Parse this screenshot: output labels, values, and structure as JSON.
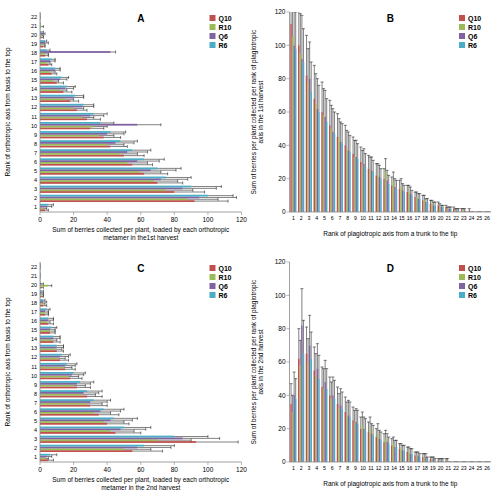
{
  "chart_data": [
    {
      "type": "bar",
      "title": "A",
      "orientation": "horizontal",
      "legend": "top-right",
      "x_label": "Sum of berries collected per plant, loaded by each orthotropic metamer in the1st harvest",
      "y_label": "Rank of orthotropic axis from basis to the top",
      "xlim": [
        0,
        120
      ],
      "xticks": [
        0,
        20,
        40,
        60,
        80,
        100,
        120
      ],
      "categories": [
        "1",
        "2",
        "3",
        "4",
        "5",
        "6",
        "7",
        "8",
        "9",
        "10",
        "11",
        "12",
        "13",
        "14",
        "15",
        "16",
        "17",
        "18",
        "19",
        "20",
        "21",
        "22"
      ],
      "series": [
        {
          "name": "Q10",
          "color": "#c0504d",
          "values": [
            3,
            92,
            80,
            70,
            62,
            55,
            50,
            42,
            38,
            30,
            28,
            22,
            18,
            14,
            10,
            7,
            5,
            3,
            2,
            1,
            0,
            0
          ],
          "errors": [
            2,
            20,
            18,
            15,
            14,
            12,
            12,
            10,
            10,
            8,
            8,
            6,
            5,
            5,
            4,
            3,
            2,
            2,
            1,
            1,
            0,
            0
          ]
        },
        {
          "name": "R10",
          "color": "#9bbb59",
          "values": [
            2,
            88,
            75,
            68,
            60,
            52,
            48,
            40,
            35,
            32,
            25,
            20,
            15,
            12,
            8,
            6,
            4,
            3,
            2,
            1,
            1,
            0
          ],
          "errors": [
            2,
            18,
            16,
            14,
            12,
            12,
            10,
            10,
            9,
            8,
            7,
            6,
            5,
            4,
            3,
            3,
            2,
            2,
            1,
            1,
            1,
            0
          ]
        },
        {
          "name": "Q6",
          "color": "#8064a2",
          "values": [
            4,
            95,
            85,
            72,
            66,
            58,
            52,
            45,
            40,
            58,
            30,
            25,
            20,
            15,
            12,
            9,
            6,
            42,
            3,
            2,
            0,
            0
          ],
          "errors": [
            3,
            22,
            20,
            16,
            15,
            13,
            12,
            11,
            10,
            14,
            8,
            7,
            6,
            5,
            4,
            3,
            3,
            3,
            2,
            1,
            0,
            0
          ]
        },
        {
          "name": "R6",
          "color": "#4bacc6",
          "values": [
            5,
            100,
            90,
            75,
            70,
            62,
            55,
            48,
            42,
            36,
            32,
            26,
            21,
            16,
            13,
            9,
            7,
            4,
            3,
            1,
            0,
            0
          ],
          "errors": [
            3,
            15,
            18,
            15,
            14,
            12,
            11,
            10,
            9,
            8,
            8,
            6,
            5,
            5,
            4,
            3,
            2,
            2,
            1,
            1,
            0,
            0
          ]
        }
      ]
    },
    {
      "type": "bar",
      "title": "B",
      "legend": "top-right",
      "x_label": "Rank of plagiotropic axis from a trunk to the tip",
      "y_label": "Sum of berries per plant collected per rank of plagiotropic axis in the 1st harvest",
      "ylim": [
        0,
        120
      ],
      "yticks": [
        0,
        20,
        40,
        60,
        80,
        100,
        120
      ],
      "categories": [
        "1",
        "2",
        "3",
        "4",
        "5",
        "6",
        "7",
        "8",
        "9",
        "10",
        "11",
        "12",
        "13",
        "14",
        "15",
        "16",
        "17",
        "18",
        "19",
        "20",
        "21",
        "22",
        "23",
        "24",
        "25",
        "26"
      ],
      "series": [
        {
          "name": "Q10",
          "color": "#c0504d",
          "values": [
            113,
            100,
            82,
            68,
            60,
            52,
            45,
            40,
            35,
            30,
            26,
            22,
            20,
            16,
            14,
            12,
            9,
            7,
            5,
            4,
            3,
            2,
            1,
            1,
            0,
            0
          ],
          "errors": [
            30,
            28,
            24,
            20,
            18,
            15,
            14,
            12,
            10,
            9,
            8,
            7,
            6,
            5,
            5,
            4,
            3,
            3,
            2,
            2,
            1,
            1,
            1,
            1,
            0,
            0
          ]
        },
        {
          "name": "R10",
          "color": "#9bbb59",
          "values": [
            105,
            95,
            78,
            65,
            58,
            50,
            44,
            38,
            33,
            28,
            25,
            22,
            24,
            18,
            15,
            12,
            9,
            7,
            5,
            3,
            2,
            1,
            1,
            0,
            0,
            0
          ],
          "errors": [
            25,
            24,
            20,
            18,
            16,
            14,
            12,
            11,
            10,
            9,
            8,
            7,
            8,
            6,
            5,
            4,
            3,
            3,
            2,
            2,
            1,
            1,
            1,
            0,
            0,
            0
          ]
        },
        {
          "name": "Q6",
          "color": "#8064a2",
          "values": [
            100,
            92,
            80,
            62,
            57,
            48,
            42,
            37,
            33,
            29,
            25,
            21,
            19,
            15,
            13,
            11,
            8,
            6,
            4,
            3,
            2,
            1,
            1,
            0,
            0,
            0
          ],
          "errors": [
            28,
            26,
            22,
            18,
            16,
            14,
            12,
            11,
            10,
            9,
            8,
            7,
            6,
            5,
            4,
            4,
            3,
            2,
            2,
            1,
            1,
            1,
            1,
            0,
            0,
            0
          ]
        },
        {
          "name": "R6",
          "color": "#4bacc6",
          "values": [
            98,
            90,
            72,
            60,
            54,
            47,
            41,
            36,
            32,
            27,
            24,
            20,
            17,
            14,
            12,
            10,
            8,
            6,
            4,
            3,
            2,
            1,
            0,
            0,
            0,
            0
          ],
          "errors": [
            22,
            20,
            18,
            16,
            14,
            13,
            12,
            10,
            9,
            8,
            7,
            6,
            5,
            5,
            4,
            3,
            3,
            2,
            2,
            1,
            1,
            1,
            0,
            0,
            0,
            0
          ]
        }
      ]
    },
    {
      "type": "bar",
      "title": "C",
      "orientation": "horizontal",
      "legend": "top-right",
      "x_label": "Sum of berries collected per plant, loaded by each orthotropic metamer in the 2nd harvest",
      "y_label": "Rank of orthotropic axis from basis to the top",
      "xlim": [
        0,
        120
      ],
      "xticks": [
        0,
        20,
        40,
        60,
        80,
        100,
        120
      ],
      "categories": [
        "1",
        "2",
        "3",
        "4",
        "5",
        "6",
        "7",
        "8",
        "9",
        "10",
        "11",
        "12",
        "13",
        "14",
        "15",
        "16",
        "17",
        "18",
        "19",
        "20",
        "21",
        "22"
      ],
      "series": [
        {
          "name": "Q10",
          "color": "#c0504d",
          "values": [
            5,
            55,
            93,
            45,
            40,
            35,
            30,
            28,
            22,
            18,
            15,
            12,
            10,
            8,
            6,
            5,
            3,
            2,
            1,
            1,
            0,
            0
          ],
          "errors": [
            3,
            18,
            25,
            15,
            13,
            12,
            10,
            9,
            8,
            7,
            6,
            5,
            4,
            4,
            3,
            3,
            2,
            2,
            1,
            1,
            0,
            0
          ]
        },
        {
          "name": "R10",
          "color": "#9bbb59",
          "values": [
            3,
            50,
            70,
            42,
            38,
            32,
            28,
            25,
            20,
            17,
            14,
            11,
            9,
            7,
            6,
            4,
            3,
            2,
            1,
            5,
            0,
            0
          ],
          "errors": [
            2,
            16,
            20,
            14,
            12,
            10,
            9,
            8,
            7,
            6,
            5,
            4,
            4,
            3,
            3,
            2,
            2,
            1,
            1,
            2,
            0,
            0
          ]
        },
        {
          "name": "Q6",
          "color": "#8064a2",
          "values": [
            4,
            58,
            85,
            48,
            42,
            36,
            30,
            26,
            22,
            19,
            15,
            12,
            10,
            8,
            6,
            5,
            3,
            2,
            1,
            1,
            0,
            0
          ],
          "errors": [
            3,
            20,
            22,
            15,
            13,
            12,
            10,
            9,
            8,
            7,
            6,
            5,
            4,
            4,
            3,
            3,
            2,
            2,
            1,
            1,
            0,
            0
          ]
        },
        {
          "name": "R6",
          "color": "#4bacc6",
          "values": [
            6,
            62,
            80,
            50,
            44,
            38,
            32,
            28,
            24,
            20,
            16,
            13,
            10,
            8,
            7,
            5,
            4,
            2,
            1,
            0,
            0,
            0
          ],
          "errors": [
            4,
            18,
            20,
            16,
            14,
            12,
            10,
            9,
            8,
            7,
            6,
            5,
            4,
            4,
            3,
            3,
            2,
            1,
            1,
            0,
            0,
            0
          ]
        }
      ]
    },
    {
      "type": "bar",
      "title": "D",
      "legend": "top-right",
      "x_label": "Rank of plagiotropic axis from a trunk to the tip",
      "y_label": "Sum of berries per plant collected per rank of plagiotropic axis in the 2nd harvest",
      "ylim": [
        0,
        120
      ],
      "yticks": [
        0,
        20,
        40,
        60,
        80,
        100,
        120
      ],
      "categories": [
        "1",
        "2",
        "3",
        "4",
        "5",
        "6",
        "7",
        "8",
        "9",
        "10",
        "11",
        "12",
        "13",
        "14",
        "15",
        "16",
        "17",
        "18",
        "19",
        "20",
        "21",
        "22",
        "23",
        "24",
        "25",
        "26"
      ],
      "series": [
        {
          "name": "Q10",
          "color": "#c0504d",
          "values": [
            35,
            62,
            65,
            55,
            45,
            40,
            35,
            30,
            25,
            20,
            18,
            15,
            12,
            10,
            8,
            6,
            4,
            3,
            2,
            1,
            1,
            0,
            0,
            0,
            0,
            0
          ],
          "errors": [
            12,
            18,
            16,
            14,
            12,
            11,
            10,
            9,
            8,
            7,
            6,
            5,
            5,
            4,
            3,
            3,
            2,
            2,
            1,
            1,
            1,
            0,
            0,
            0,
            0,
            0
          ]
        },
        {
          "name": "R10",
          "color": "#9bbb59",
          "values": [
            30,
            58,
            60,
            52,
            44,
            38,
            32,
            28,
            24,
            22,
            20,
            17,
            14,
            11,
            8,
            6,
            4,
            3,
            2,
            1,
            1,
            0,
            0,
            0,
            0,
            0
          ],
          "errors": [
            10,
            15,
            14,
            13,
            12,
            10,
            9,
            8,
            7,
            8,
            7,
            6,
            5,
            4,
            3,
            3,
            2,
            2,
            1,
            1,
            1,
            0,
            0,
            0,
            0,
            0
          ]
        },
        {
          "name": "Q6",
          "color": "#8064a2",
          "values": [
            40,
            82,
            70,
            56,
            48,
            40,
            34,
            28,
            24,
            20,
            17,
            14,
            12,
            9,
            7,
            5,
            4,
            3,
            2,
            1,
            0,
            0,
            0,
            0,
            0,
            0
          ],
          "errors": [
            14,
            22,
            18,
            15,
            13,
            11,
            10,
            9,
            8,
            7,
            6,
            5,
            5,
            4,
            3,
            3,
            2,
            2,
            1,
            1,
            0,
            0,
            0,
            0,
            0,
            0
          ]
        },
        {
          "name": "R6",
          "color": "#4bacc6",
          "values": [
            38,
            65,
            62,
            50,
            44,
            38,
            32,
            27,
            23,
            19,
            16,
            13,
            11,
            9,
            7,
            5,
            3,
            2,
            1,
            1,
            0,
            0,
            0,
            0,
            0,
            0
          ],
          "errors": [
            12,
            20,
            16,
            14,
            12,
            11,
            10,
            9,
            8,
            7,
            6,
            5,
            4,
            4,
            3,
            3,
            2,
            1,
            1,
            1,
            0,
            0,
            0,
            0,
            0,
            0
          ]
        }
      ]
    }
  ]
}
